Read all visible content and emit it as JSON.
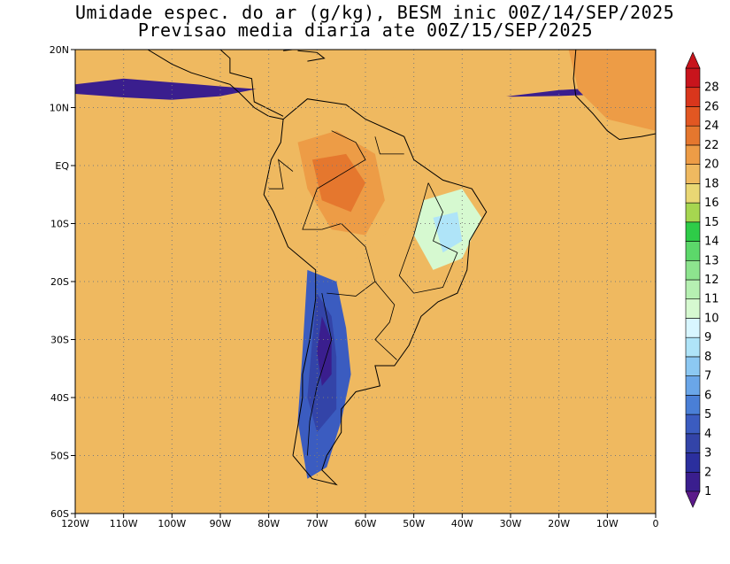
{
  "title_line1": "Umidade espec. do ar (g/kg), BESM inic 00Z/14/SEP/2025",
  "title_line2": "Previsao media diaria ate 00Z/15/SEP/2025",
  "lat_labels": [
    "20N",
    "10N",
    "EQ",
    "10S",
    "20S",
    "30S",
    "40S",
    "50S",
    "60S"
  ],
  "lon_labels": [
    "120W",
    "110W",
    "100W",
    "90W",
    "80W",
    "70W",
    "60W",
    "50W",
    "40W",
    "30W",
    "20W",
    "10W",
    "0"
  ],
  "colorbar": {
    "labels": [
      "1",
      "2",
      "3",
      "4",
      "5",
      "6",
      "7",
      "8",
      "9",
      "10",
      "11",
      "12",
      "13",
      "14",
      "15",
      "16",
      "18",
      "20",
      "22",
      "24",
      "26",
      "28"
    ],
    "colors": [
      "#3a1e8e",
      "#2b2f9e",
      "#3344a8",
      "#3b5cc0",
      "#4a7fd6",
      "#6aa6e8",
      "#8cc8f2",
      "#afe4f8",
      "#d8f6ff",
      "#d6f9d0",
      "#b6f0b2",
      "#8de48e",
      "#5cd86a",
      "#2ecc48",
      "#a6d650",
      "#e9d774",
      "#efb960",
      "#ed9c46",
      "#e5772e",
      "#e25722",
      "#d9361c",
      "#c8141c"
    ]
  },
  "map": {
    "lon_range": [
      -120,
      0
    ],
    "lat_range": [
      -60,
      20
    ],
    "grid": "dotted",
    "ocean_base_color": "#1a1a5c"
  }
}
